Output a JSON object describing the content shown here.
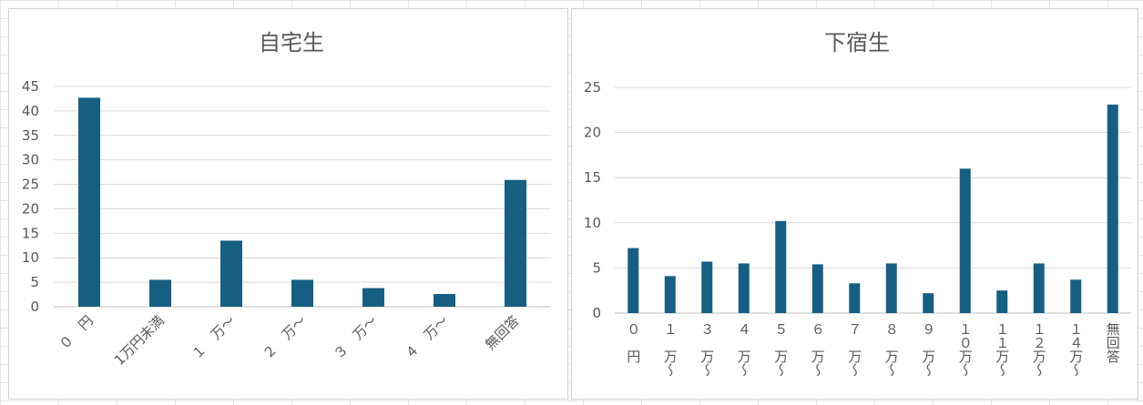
{
  "chart_data": [
    {
      "type": "bar",
      "title": "自宅生",
      "categories": [
        "０　円",
        "1万円未満",
        "１　万〜",
        "２　万〜",
        "３　万〜",
        "４　万〜",
        "無回答"
      ],
      "values": [
        42.7,
        5.5,
        13.5,
        5.5,
        3.8,
        2.6,
        25.9
      ],
      "ylim": [
        0,
        45
      ],
      "yticks": [
        0,
        5,
        10,
        15,
        20,
        25,
        30,
        35,
        40,
        45
      ],
      "grid": true,
      "color": "#175f82",
      "label_style": "rotated-45"
    },
    {
      "type": "bar",
      "title": "下宿生",
      "categories": [
        "０　円",
        "１　万〜",
        "３　万〜",
        "４　万〜",
        "５　万〜",
        "６　万〜",
        "７　万〜",
        "８　万〜",
        "９　万〜",
        "１０万〜",
        "１１万〜",
        "１２万〜",
        "１４万〜",
        "無回答"
      ],
      "values": [
        7.2,
        4.1,
        5.7,
        5.5,
        10.2,
        5.4,
        3.3,
        5.5,
        2.2,
        16.0,
        2.5,
        5.5,
        3.7,
        23.1
      ],
      "ylim": [
        0,
        25
      ],
      "yticks": [
        0,
        5,
        10,
        15,
        20,
        25
      ],
      "grid": true,
      "color": "#175f82",
      "label_style": "vertical"
    }
  ]
}
